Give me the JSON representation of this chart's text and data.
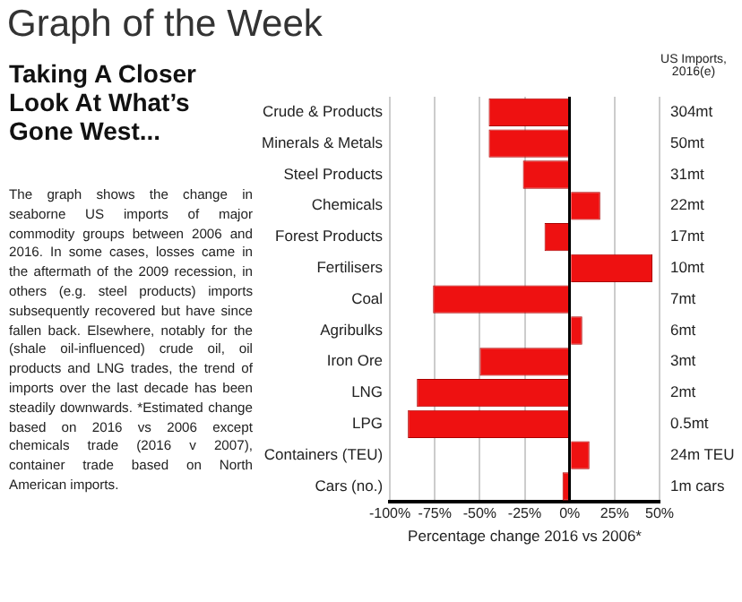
{
  "chart_data": {
    "type": "bar",
    "orientation": "horizontal",
    "title": "Graph of the Week",
    "subtitle": "Taking A Closer Look At What’s Gone West...",
    "xlabel": "Percentage change 2016 vs 2006*",
    "categories": [
      "Crude & Products",
      "Minerals & Metals",
      "Steel Products",
      "Chemicals",
      "Forest Products",
      "Fertilisers",
      "Coal",
      "Agribulks",
      "Iron Ore",
      "LNG",
      "LPG",
      "Containers (TEU)",
      "Cars (no.)"
    ],
    "values": [
      -45,
      -45,
      -26,
      17,
      -14,
      46,
      -76,
      7,
      -50,
      -85,
      -90,
      11,
      -4
    ],
    "color": "#ee1111",
    "xlim": [
      -100,
      50
    ],
    "xticks": [
      {
        "value": -100,
        "label": "-100%"
      },
      {
        "value": -75,
        "label": "-75%"
      },
      {
        "value": -50,
        "label": "-50%"
      },
      {
        "value": -25,
        "label": "-25%"
      },
      {
        "value": 0,
        "label": "0%"
      },
      {
        "value": 25,
        "label": "25%"
      },
      {
        "value": 50,
        "label": "50%"
      }
    ],
    "grid": "x",
    "legend": false,
    "annotations": [
      "US Imports, 2016(e)",
      "The graph shows the change in seaborne US imports of major commodity groups between 2006 and 2016. In some cases, losses came in the aftermath of the 2009 recession, in others (e.g. steel products) imports subsequently recovered but have since fallen back. Elsewhere, notably for the (shale oil-influenced) crude oil, oil products and LNG trades, the trend of imports over the last decade has been steadily downwards. *Estimated change based on 2016 vs 2006 except chemicals trade (2016 v 2007), container trade based on North American imports.",
      "304mt",
      "50mt",
      "31mt",
      "22mt",
      "17mt",
      "10mt",
      "7mt",
      "6mt",
      "3mt",
      "2mt",
      "0.5mt",
      "24m TEU",
      "1m cars"
    ]
  }
}
